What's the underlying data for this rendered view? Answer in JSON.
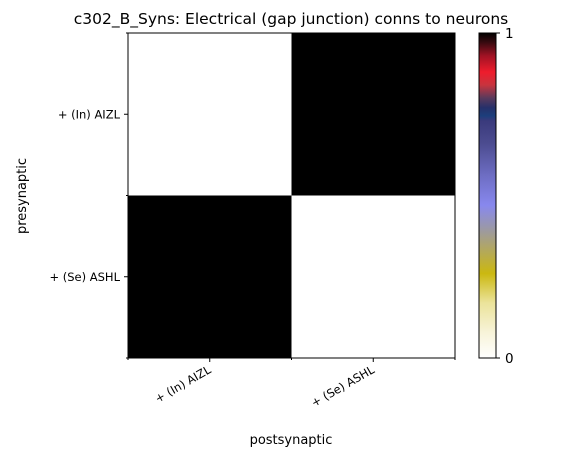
{
  "chart_data": {
    "type": "heatmap",
    "title": "c302_B_Syns: Electrical (gap junction) conns to neurons",
    "xlabel": "postsynaptic",
    "ylabel": "presynaptic",
    "x_categories": [
      "+ (In) AIZL",
      "+ (Se) ASHL"
    ],
    "y_categories": [
      "+ (In) AIZL",
      "+ (Se) ASHL"
    ],
    "values": [
      [
        0,
        1
      ],
      [
        1,
        0
      ]
    ],
    "colorbar": {
      "range": [
        0,
        1
      ],
      "ticks": [
        {
          "value": 0,
          "label": "0"
        },
        {
          "value": 1,
          "label": "1"
        }
      ],
      "colormap": "gist_stern_r"
    },
    "grid": false
  }
}
